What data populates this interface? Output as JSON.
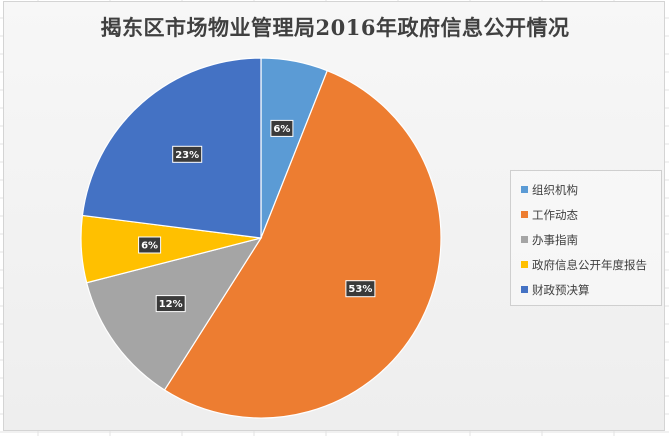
{
  "chart_data": {
    "type": "pie",
    "title": "揭东区市场物业管理局2016年政府信息公开情况",
    "categories": [
      "组织机构",
      "工作动态",
      "办事指南",
      "政府信息公开年度报告",
      "财政预决算"
    ],
    "values": [
      6,
      53,
      12,
      6,
      23
    ],
    "data_labels": [
      "6%",
      "53%",
      "12%",
      "6%",
      "23%"
    ],
    "colors": [
      "#5b9bd5",
      "#ed7d31",
      "#a5a5a5",
      "#ffc000",
      "#4472c4"
    ],
    "legend_position": "right",
    "start_angle_deg": 0,
    "direction": "clockwise"
  }
}
